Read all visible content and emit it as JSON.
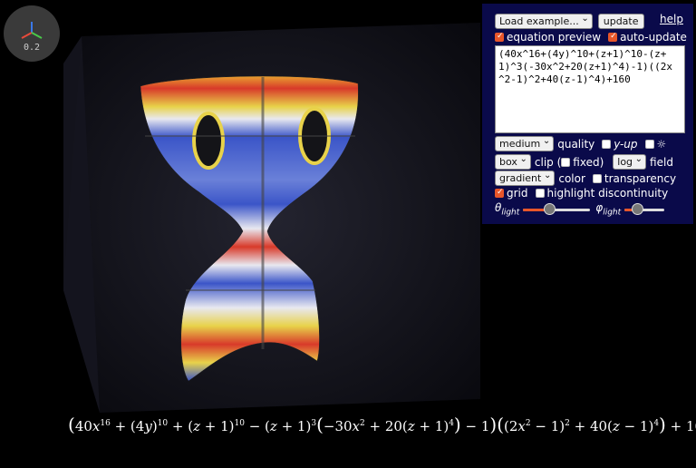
{
  "viewport": {
    "scale_label": "0.2",
    "colors": {
      "background": "#000000",
      "surface_blue": "#3b55c8",
      "surface_red": "#d83a2a",
      "surface_yellow": "#e8d24a",
      "surface_white": "#e8e8f0"
    }
  },
  "controls": {
    "example_select": "Load example...",
    "update_button": "update",
    "help_link": "help",
    "equation_preview": {
      "label": "equation preview",
      "checked": true
    },
    "auto_update": {
      "label": "auto-update",
      "checked": true
    },
    "equation_text": "(40x^16+(4y)^10+(z+1)^10-(z+\n1)^3(-30x^2+20(z+1)^4)-1)((2x\n^2-1)^2+40(z-1)^4)+160",
    "quality_select": "medium",
    "quality_label": "quality",
    "y_up": {
      "label": "y-up",
      "checked": false
    },
    "light_toggle": {
      "label": "☼",
      "checked": false
    },
    "clip_select": "box",
    "clip_label": "clip (",
    "fixed": {
      "label": "fixed)",
      "checked": false
    },
    "field_select": "log",
    "field_label": "field",
    "color_select": "gradient",
    "color_label": "color",
    "transparency": {
      "label": "transparency",
      "checked": false
    },
    "grid": {
      "label": "grid",
      "checked": true
    },
    "highlight_discontinuity": {
      "label": "highlight discontinuity",
      "checked": false
    },
    "theta_label": "θ",
    "phi_label": "φ",
    "light_sub": "light",
    "theta_value": 0.38,
    "phi_value": 0.25,
    "accent_color": "#e8562a"
  }
}
